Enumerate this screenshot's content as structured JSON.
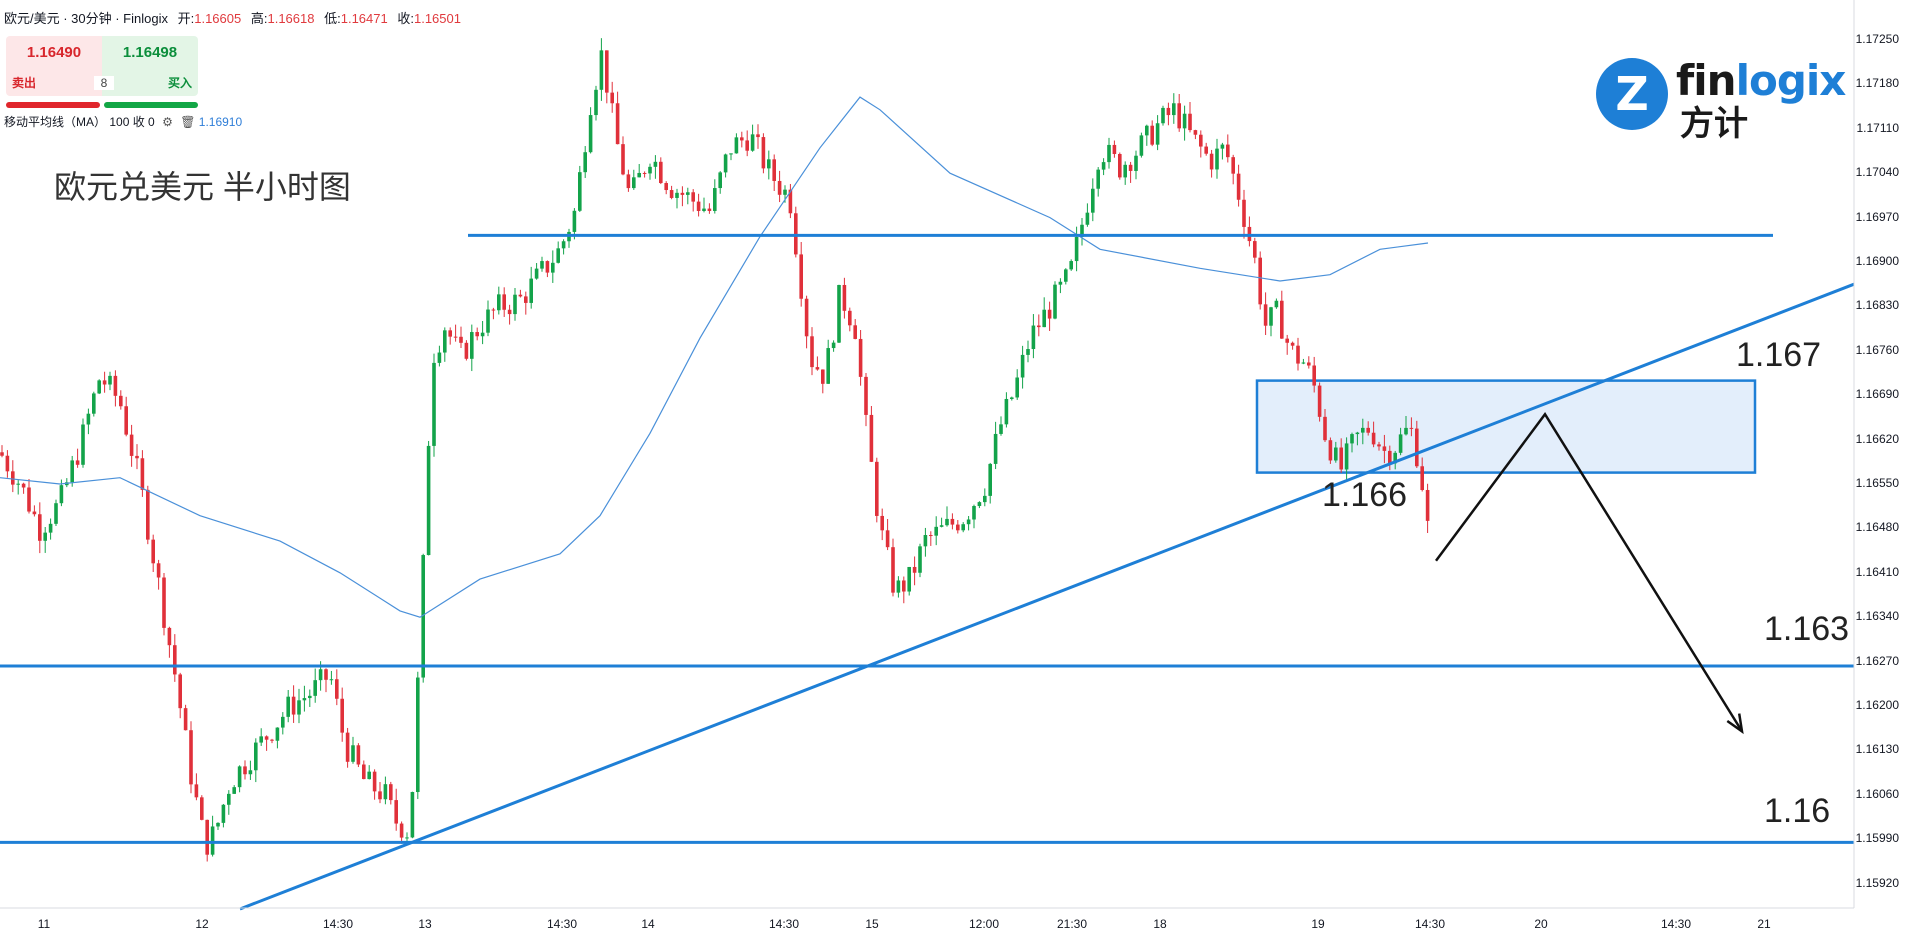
{
  "header": {
    "symbol": "欧元/美元 · 30分钟 · Finlogix",
    "open_label": "开:",
    "open": "1.16605",
    "high_label": "高:",
    "high": "1.16618",
    "low_label": "低:",
    "low": "1.16471",
    "close_label": "收:",
    "close": "1.16501"
  },
  "trade": {
    "sell_price": "1.16490",
    "buy_price": "1.16498",
    "sell_label": "卖出",
    "buy_label": "买入",
    "spread": "8"
  },
  "indicator": {
    "name": "移动平均线（MA）",
    "params": "100 收 0",
    "value": "1.16910",
    "settings_icon": "gear-icon",
    "delete_icon": "trash-icon"
  },
  "title": "欧元兑美元 半小时图",
  "logo": {
    "text_a": "fin",
    "text_b": "logix",
    "cn": "方计"
  },
  "colors": {
    "up": "#13a34a",
    "down": "#e0303a",
    "lines": "#1e7fd6",
    "ma": "#4a90d9",
    "zone": "#e3eefb"
  },
  "chart_data": {
    "type": "candlestick",
    "timeframe": "30分钟",
    "y_ticks": [
      "1.17250",
      "1.17180",
      "1.17110",
      "1.17040",
      "1.16970",
      "1.16900",
      "1.16830",
      "1.16760",
      "1.16690",
      "1.16620",
      "1.16550",
      "1.16480",
      "1.16410",
      "1.16340",
      "1.16270",
      "1.16200",
      "1.16130",
      "1.16060",
      "1.15990",
      "1.15920"
    ],
    "x_ticks": [
      "11",
      "12",
      "14:30",
      "13",
      "14:30",
      "14",
      "14:30",
      "15",
      "12:00",
      "21:30",
      "18",
      "19",
      "14:30",
      "20",
      "14:30",
      "21"
    ],
    "ylim": [
      1.1588,
      1.173
    ],
    "grid": false,
    "price_path": [
      [
        0,
        1.166
      ],
      [
        20,
        1.1655
      ],
      [
        40,
        1.1648
      ],
      [
        60,
        1.1652
      ],
      [
        80,
        1.1661
      ],
      [
        100,
        1.1672
      ],
      [
        120,
        1.1668
      ],
      [
        140,
        1.1655
      ],
      [
        160,
        1.1638
      ],
      [
        175,
        1.1625
      ],
      [
        190,
        1.161
      ],
      [
        205,
        1.1598
      ],
      [
        215,
        1.16
      ],
      [
        230,
        1.1608
      ],
      [
        250,
        1.1612
      ],
      [
        270,
        1.1616
      ],
      [
        290,
        1.162
      ],
      [
        310,
        1.1622
      ],
      [
        330,
        1.1625
      ],
      [
        345,
        1.1614
      ],
      [
        365,
        1.1608
      ],
      [
        385,
        1.1606
      ],
      [
        395,
        1.1602
      ],
      [
        410,
        1.16
      ],
      [
        420,
        1.163
      ],
      [
        432,
        1.1675
      ],
      [
        445,
        1.168
      ],
      [
        460,
        1.1675
      ],
      [
        480,
        1.168
      ],
      [
        500,
        1.1683
      ],
      [
        520,
        1.1684
      ],
      [
        540,
        1.1688
      ],
      [
        560,
        1.1692
      ],
      [
        575,
        1.1698
      ],
      [
        590,
        1.1715
      ],
      [
        602,
        1.1723
      ],
      [
        615,
        1.171
      ],
      [
        630,
        1.17
      ],
      [
        650,
        1.1707
      ],
      [
        670,
        1.1702
      ],
      [
        690,
        1.17
      ],
      [
        710,
        1.1698
      ],
      [
        730,
        1.1708
      ],
      [
        750,
        1.171
      ],
      [
        770,
        1.1704
      ],
      [
        790,
        1.17
      ],
      [
        800,
        1.1688
      ],
      [
        810,
        1.1675
      ],
      [
        825,
        1.1672
      ],
      [
        840,
        1.1685
      ],
      [
        855,
        1.168
      ],
      [
        865,
        1.1665
      ],
      [
        880,
        1.1648
      ],
      [
        895,
        1.1638
      ],
      [
        910,
        1.164
      ],
      [
        925,
        1.1646
      ],
      [
        945,
        1.1648
      ],
      [
        965,
        1.165
      ],
      [
        985,
        1.1655
      ],
      [
        1000,
        1.1664
      ],
      [
        1015,
        1.167
      ],
      [
        1030,
        1.1678
      ],
      [
        1050,
        1.1683
      ],
      [
        1070,
        1.1688
      ],
      [
        1085,
        1.1698
      ],
      [
        1100,
        1.1708
      ],
      [
        1120,
        1.1705
      ],
      [
        1140,
        1.1708
      ],
      [
        1160,
        1.1712
      ],
      [
        1175,
        1.1714
      ],
      [
        1190,
        1.171
      ],
      [
        1210,
        1.1706
      ],
      [
        1225,
        1.1708
      ],
      [
        1240,
        1.17
      ],
      [
        1255,
        1.169
      ],
      [
        1265,
        1.168
      ],
      [
        1278,
        1.1682
      ],
      [
        1290,
        1.1676
      ],
      [
        1305,
        1.1674
      ],
      [
        1315,
        1.167
      ],
      [
        1325,
        1.1663
      ],
      [
        1340,
        1.1657
      ],
      [
        1355,
        1.1662
      ],
      [
        1370,
        1.1664
      ],
      [
        1385,
        1.166
      ],
      [
        1395,
        1.1661
      ],
      [
        1410,
        1.1664
      ],
      [
        1420,
        1.1658
      ],
      [
        1430,
        1.1645
      ],
      [
        1432,
        1.165
      ]
    ],
    "moving_average": [
      [
        0,
        1.1656
      ],
      [
        60,
        1.1655
      ],
      [
        120,
        1.1656
      ],
      [
        200,
        1.165
      ],
      [
        280,
        1.1646
      ],
      [
        340,
        1.1641
      ],
      [
        400,
        1.1635
      ],
      [
        420,
        1.1634
      ],
      [
        480,
        1.164
      ],
      [
        560,
        1.1644
      ],
      [
        600,
        1.165
      ],
      [
        650,
        1.1663
      ],
      [
        700,
        1.1678
      ],
      [
        760,
        1.1694
      ],
      [
        820,
        1.1708
      ],
      [
        860,
        1.1716
      ],
      [
        880,
        1.1714
      ],
      [
        950,
        1.1704
      ],
      [
        1050,
        1.1697
      ],
      [
        1100,
        1.1692
      ],
      [
        1200,
        1.1689
      ],
      [
        1280,
        1.1687
      ],
      [
        1330,
        1.1688
      ],
      [
        1380,
        1.1692
      ],
      [
        1428,
        1.1693
      ]
    ],
    "levels": [
      {
        "label": "",
        "y": 1.16942,
        "x0": 468,
        "x1": 1773
      },
      {
        "label": "1.163",
        "y": 1.16263
      },
      {
        "label": "1.16",
        "y": 1.15985
      }
    ],
    "trendline": [
      [
        240,
        1.1588
      ],
      [
        1854,
        1.16865
      ]
    ],
    "zone": {
      "label_top": "1.167",
      "label_bottom": "1.166",
      "y_top": 1.16713,
      "y_bottom": 1.16568,
      "x0": 1257,
      "x1": 1755
    },
    "projection": [
      [
        1436,
        1.16429
      ],
      [
        1545,
        1.1666
      ],
      [
        1742,
        1.1616
      ]
    ],
    "annotations": [
      "1.167",
      "1.166",
      "1.163",
      "1.16"
    ]
  }
}
